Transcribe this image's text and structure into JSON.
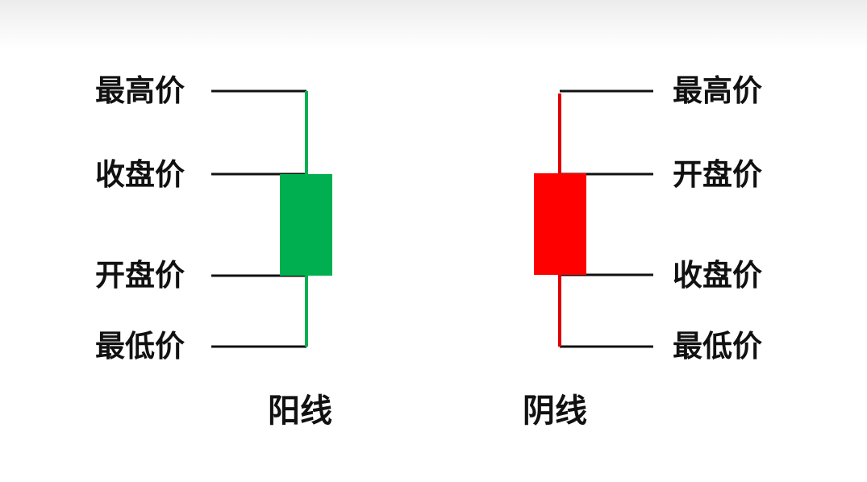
{
  "colors": {
    "bullish": "#00b050",
    "bearish": "#ff0000",
    "leader": "#111111"
  },
  "bullish_candle": {
    "caption": "阳线",
    "labels": {
      "high": "最高价",
      "close": "收盘价",
      "open": "开盘价",
      "low": "最低价"
    }
  },
  "bearish_candle": {
    "caption": "阴线",
    "labels": {
      "high": "最高价",
      "open": "开盘价",
      "close": "收盘价",
      "low": "最低价"
    }
  }
}
